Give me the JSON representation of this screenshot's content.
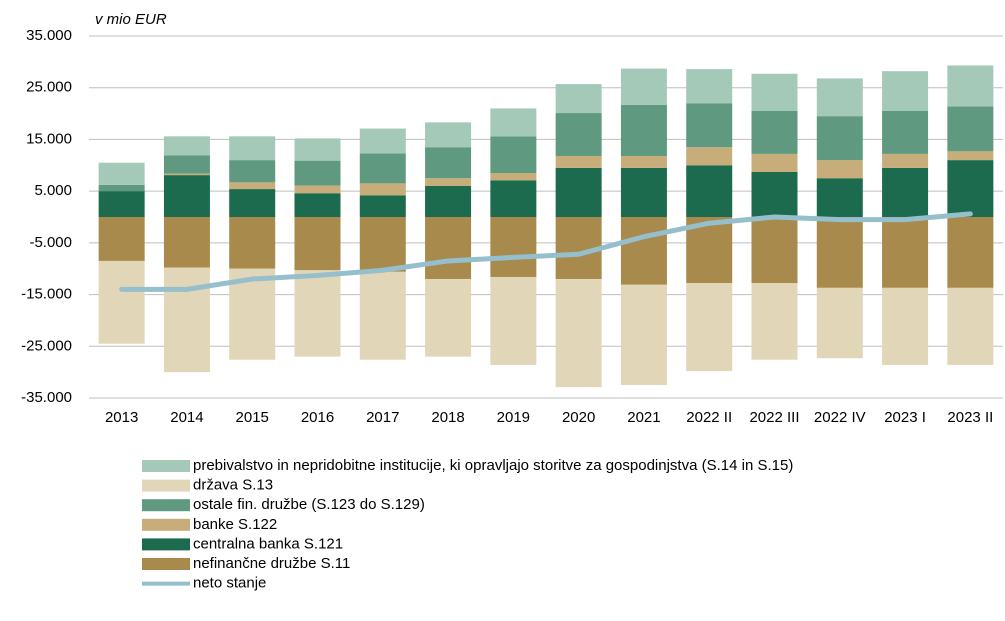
{
  "chart_data": {
    "type": "stacked_bar_line",
    "y_axis_label": "v mio EUR",
    "categories": [
      "2013",
      "2014",
      "2015",
      "2016",
      "2017",
      "2018",
      "2019",
      "2020",
      "2021",
      "2022 II",
      "2022 III",
      "2022 IV",
      "2023 I",
      "2023 II"
    ],
    "ylim": [
      -35000,
      35000
    ],
    "yticks": [
      {
        "value": 35000,
        "label": "35.000"
      },
      {
        "value": 25000,
        "label": "25.000"
      },
      {
        "value": 15000,
        "label": "15.000"
      },
      {
        "value": 5000,
        "label": "5.000"
      },
      {
        "value": -5000,
        "label": "-5.000"
      },
      {
        "value": -15000,
        "label": "-15.000"
      },
      {
        "value": -25000,
        "label": "-25.000"
      },
      {
        "value": -35000,
        "label": "-35.000"
      }
    ],
    "grid": true,
    "series": [
      {
        "name": "prebivalstvo in nepridobitne institucije, ki opravljajo storitve za gospodinjstva (S.14 in S.15)",
        "color": "#a5c9b9",
        "values": [
          4300,
          3700,
          4600,
          4300,
          4800,
          4800,
          5400,
          5600,
          7000,
          6600,
          7200,
          7300,
          7700,
          7900
        ]
      },
      {
        "name": "država S.13",
        "color": "#e2d6b8",
        "values": [
          -16000,
          -20200,
          -17600,
          -16700,
          -17000,
          -15000,
          -17000,
          -20900,
          -19400,
          -17000,
          -14800,
          -13600,
          -14900,
          -14900
        ]
      },
      {
        "name": "ostale fin. družbe (S.123 do S.129)",
        "color": "#5f9a80",
        "values": [
          1200,
          3500,
          4300,
          4800,
          5800,
          6000,
          7100,
          8300,
          9900,
          8500,
          8300,
          8500,
          8300,
          8700
        ]
      },
      {
        "name": "banke S.122",
        "color": "#c6ad7a",
        "values": [
          0,
          300,
          1300,
          1500,
          2300,
          1500,
          1400,
          2300,
          2300,
          3500,
          3500,
          3500,
          2700,
          1700
        ]
      },
      {
        "name": "centralna banka S.121",
        "color": "#1c6b4e",
        "values": [
          5000,
          8100,
          5400,
          4600,
          4200,
          6000,
          7100,
          9500,
          9500,
          10000,
          8700,
          7500,
          9500,
          11000
        ]
      },
      {
        "name": "nefinančne družbe S.11",
        "color": "#a88a4c",
        "values": [
          -8500,
          -9800,
          -10000,
          -10300,
          -10600,
          -12000,
          -11600,
          -12000,
          -13100,
          -12800,
          -12800,
          -13700,
          -13700,
          -13700
        ]
      },
      {
        "name": "neto stanje",
        "color": "#95bfcc",
        "type": "line",
        "values": [
          -14000,
          -14000,
          -12000,
          -11300,
          -10300,
          -8500,
          -7800,
          -7200,
          -3800,
          -1200,
          0,
          -500,
          -500,
          600
        ]
      }
    ],
    "stack_order": [
      4,
      3,
      2,
      0,
      5,
      1
    ]
  }
}
